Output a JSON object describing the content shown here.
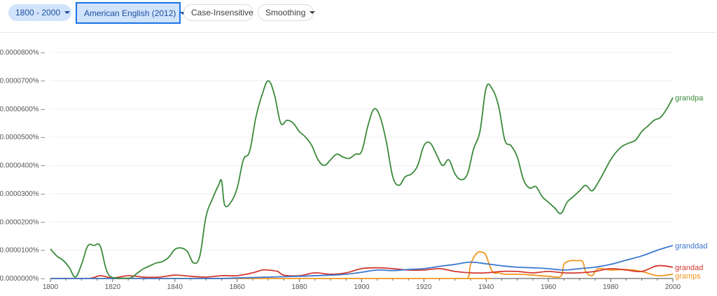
{
  "toolbar": {
    "year_range": "1800 - 2000",
    "corpus": "American English (2012)",
    "case": "Case-Insensitive",
    "smoothing": "Smoothing"
  },
  "chart_data": {
    "type": "line",
    "xlim": [
      1800,
      2000
    ],
    "ylim": [
      0,
      8e-05
    ],
    "x_ticks": [
      "1800",
      "1820",
      "1840",
      "1860",
      "1880",
      "1900",
      "1920",
      "1940",
      "1960",
      "1980",
      "2000"
    ],
    "y_ticks": [
      "0.0000000%",
      "0.0000100%",
      "0.0000200%",
      "0.0000300%",
      "0.0000400%",
      "0.0000500%",
      "0.0000600%",
      "0.0000700%",
      "0.0000800%"
    ],
    "grid": true,
    "series": [
      {
        "name": "grandpa",
        "color": "#3a8a3a",
        "x": [
          1800,
          1802,
          1804,
          1806,
          1808,
          1810,
          1812,
          1814,
          1816,
          1818,
          1820,
          1824,
          1826,
          1828,
          1830,
          1832,
          1834,
          1836,
          1838,
          1840,
          1842,
          1844,
          1846,
          1848,
          1850,
          1852,
          1854,
          1855,
          1856,
          1858,
          1860,
          1862,
          1864,
          1866,
          1868,
          1870,
          1872,
          1874,
          1876,
          1878,
          1880,
          1882,
          1884,
          1886,
          1888,
          1890,
          1892,
          1894,
          1896,
          1898,
          1900,
          1902,
          1904,
          1906,
          1908,
          1910,
          1912,
          1914,
          1916,
          1918,
          1920,
          1922,
          1924,
          1926,
          1928,
          1930,
          1932,
          1934,
          1936,
          1938,
          1940,
          1942,
          1944,
          1946,
          1948,
          1950,
          1952,
          1954,
          1956,
          1958,
          1960,
          1962,
          1964,
          1966,
          1968,
          1970,
          1972,
          1974,
          1976,
          1978,
          1980,
          1982,
          1984,
          1986,
          1988,
          1990,
          1992,
          1994,
          1996,
          1998,
          2000
        ],
        "y": [
          1.05e-05,
          8e-06,
          6.5e-06,
          4e-06,
          5e-07,
          5e-06,
          1.15e-05,
          1.17e-05,
          1.15e-05,
          3e-06,
          3e-07,
          1e-07,
          3e-07,
          2e-06,
          3.5e-06,
          4.5e-06,
          5.5e-06,
          6e-06,
          7.5e-06,
          1.03e-05,
          1.08e-05,
          9.5e-06,
          5.5e-06,
          8e-06,
          2.2e-05,
          2.8e-05,
          3.3e-05,
          3.45e-05,
          2.6e-05,
          2.7e-05,
          3.2e-05,
          4.2e-05,
          4.5e-05,
          5.7e-05,
          6.5e-05,
          7e-05,
          6.5e-05,
          5.5e-05,
          5.6e-05,
          5.5e-05,
          5.2e-05,
          5e-05,
          4.7e-05,
          4.2e-05,
          4e-05,
          4.2e-05,
          4.4e-05,
          4.3e-05,
          4.25e-05,
          4.4e-05,
          4.5e-05,
          5.4e-05,
          6e-05,
          5.7e-05,
          4.8e-05,
          3.6e-05,
          3.3e-05,
          3.6e-05,
          3.7e-05,
          4e-05,
          4.7e-05,
          4.8e-05,
          4.4e-05,
          4e-05,
          4.2e-05,
          3.7e-05,
          3.5e-05,
          3.7e-05,
          4.6e-05,
          5.2e-05,
          6.75e-05,
          6.7e-05,
          6.1e-05,
          4.9e-05,
          4.7e-05,
          4.3e-05,
          3.5e-05,
          3.2e-05,
          3.25e-05,
          2.9e-05,
          2.7e-05,
          2.5e-05,
          2.3e-05,
          2.7e-05,
          2.9e-05,
          3.1e-05,
          3.3e-05,
          3.1e-05,
          3.4e-05,
          3.8e-05,
          4.2e-05,
          4.5e-05,
          4.7e-05,
          4.8e-05,
          4.9e-05,
          5.2e-05,
          5.4e-05,
          5.6e-05,
          5.7e-05,
          6e-05,
          6.4e-05
        ],
        "label": "grandpa"
      },
      {
        "name": "granddad",
        "color": "#3b78d0",
        "x": [
          1800,
          1850,
          1860,
          1870,
          1880,
          1890,
          1895,
          1900,
          1905,
          1910,
          1915,
          1920,
          1925,
          1930,
          1935,
          1940,
          1945,
          1950,
          1955,
          1960,
          1965,
          1970,
          1975,
          1980,
          1985,
          1990,
          1995,
          2000
        ],
        "y": [
          0,
          0,
          2e-07,
          5e-07,
          8e-07,
          1.2e-06,
          1.5e-06,
          2.2e-06,
          3e-06,
          2.8e-06,
          3.2e-06,
          3.5e-06,
          4.3e-06,
          5e-06,
          5.8e-06,
          5.2e-06,
          4.5e-06,
          4e-06,
          3.8e-06,
          3.5e-06,
          3e-06,
          3.5e-06,
          4e-06,
          5e-06,
          6.5e-06,
          8e-06,
          1e-05,
          1.17e-05
        ],
        "label": "granddad"
      },
      {
        "name": "grandad",
        "color": "#d33a31",
        "x": [
          1800,
          1812,
          1816,
          1820,
          1825,
          1830,
          1835,
          1840,
          1845,
          1850,
          1855,
          1860,
          1865,
          1868,
          1870,
          1873,
          1875,
          1880,
          1885,
          1890,
          1895,
          1900,
          1905,
          1910,
          1915,
          1920,
          1925,
          1930,
          1935,
          1940,
          1945,
          1950,
          1955,
          1960,
          1965,
          1970,
          1975,
          1980,
          1985,
          1990,
          1995,
          2000
        ],
        "y": [
          0,
          0,
          1e-06,
          2e-07,
          1e-06,
          5e-07,
          5e-07,
          1.2e-06,
          8e-07,
          5e-07,
          1e-06,
          1e-06,
          2e-06,
          3e-06,
          3e-06,
          2.5e-06,
          1.2e-06,
          1e-06,
          2e-06,
          1.5e-06,
          2e-06,
          3.5e-06,
          3.8e-06,
          3.5e-06,
          3e-06,
          3e-06,
          3.5e-06,
          2.5e-06,
          2e-06,
          2e-06,
          2.5e-06,
          2.5e-06,
          2e-06,
          2.5e-06,
          2e-06,
          2e-06,
          2.5e-06,
          3.5e-06,
          3e-06,
          2.5e-06,
          4.5e-06,
          4e-06
        ],
        "label": "grandad"
      },
      {
        "name": "gramps",
        "color": "#f0961e",
        "x": [
          1800,
          1930,
          1934,
          1935,
          1937,
          1939,
          1940,
          1942,
          1944,
          1946,
          1950,
          1955,
          1960,
          1964,
          1965,
          1967,
          1969,
          1971,
          1972,
          1974,
          1976,
          1980,
          1985,
          1990,
          1995,
          2000
        ],
        "y": [
          0,
          0,
          0,
          5e-06,
          9e-06,
          9.2e-06,
          8e-06,
          2.5e-06,
          2e-06,
          1.5e-06,
          1.5e-06,
          1.2e-06,
          8e-07,
          8e-07,
          5e-06,
          6.3e-06,
          6.3e-06,
          6e-06,
          2.5e-06,
          1e-06,
          3.5e-06,
          3e-06,
          3.2e-06,
          2.5e-06,
          1e-06,
          1.5e-06
        ],
        "label": "gramps"
      }
    ]
  }
}
